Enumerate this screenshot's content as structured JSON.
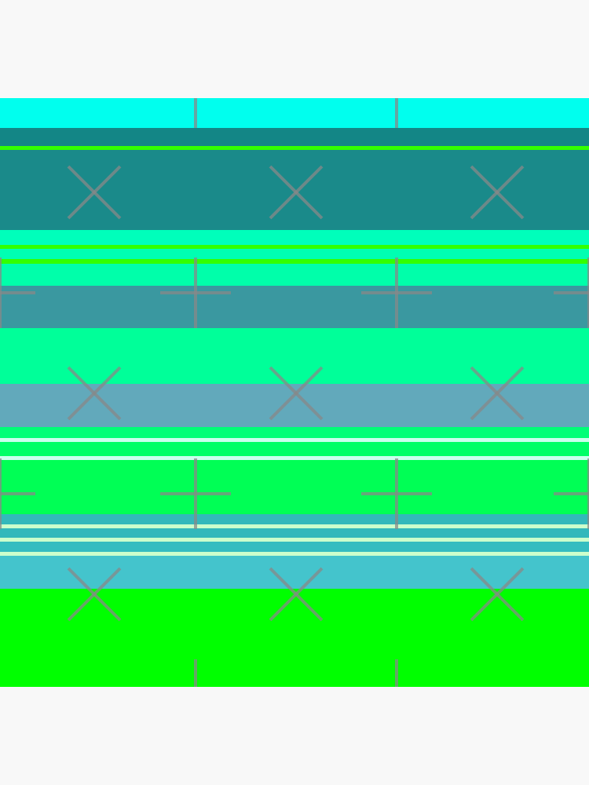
{
  "background": "#f8f8f8",
  "pattern": {
    "type": "horizontal-stripes",
    "stripes": [
      {
        "color": "#00ffee",
        "span": [
          0,
          38
        ]
      },
      {
        "color": "#138686",
        "span": [
          38,
          61
        ]
      },
      {
        "color": "#33ff00",
        "span": [
          61,
          66
        ]
      },
      {
        "color": "#1a8a8a",
        "span": [
          66,
          168
        ]
      },
      {
        "color": "#00ffbb",
        "span": [
          168,
          187
        ]
      },
      {
        "color": "#33ff00",
        "span": [
          187,
          192
        ]
      },
      {
        "color": "#00ffb2",
        "span": [
          192,
          205
        ]
      },
      {
        "color": "#33ff00",
        "span": [
          205,
          211
        ]
      },
      {
        "color": "#00ffaa",
        "span": [
          211,
          239
        ]
      },
      {
        "color": "#3a98a0",
        "span": [
          239,
          293
        ]
      },
      {
        "color": "#00ff99",
        "span": [
          293,
          364
        ]
      },
      {
        "color": "#62a9bb",
        "span": [
          364,
          419
        ]
      },
      {
        "color": "#00ff77",
        "span": [
          419,
          433
        ]
      },
      {
        "color": "#ccffee",
        "span": [
          433,
          438
        ]
      },
      {
        "color": "#00ff66",
        "span": [
          438,
          456
        ]
      },
      {
        "color": "#ccffee",
        "span": [
          456,
          461
        ]
      },
      {
        "color": "#00ff55",
        "span": [
          461,
          530
        ]
      },
      {
        "color": "#33b8bb",
        "span": [
          530,
          543
        ]
      },
      {
        "color": "#ccffcc",
        "span": [
          543,
          548
        ]
      },
      {
        "color": "#33b8bb",
        "span": [
          548,
          560
        ]
      },
      {
        "color": "#ccffcc",
        "span": [
          560,
          565
        ]
      },
      {
        "color": "#35bcc0",
        "span": [
          565,
          578
        ]
      },
      {
        "color": "#ccffcc",
        "span": [
          578,
          583
        ]
      },
      {
        "color": "#44c4cc",
        "span": [
          583,
          625
        ]
      },
      {
        "color": "#00ff00",
        "span": [
          625,
          750
        ]
      }
    ],
    "mark_color": "#888888",
    "marks": [
      "x-mark",
      "plus-mark",
      "tick-mark"
    ]
  }
}
